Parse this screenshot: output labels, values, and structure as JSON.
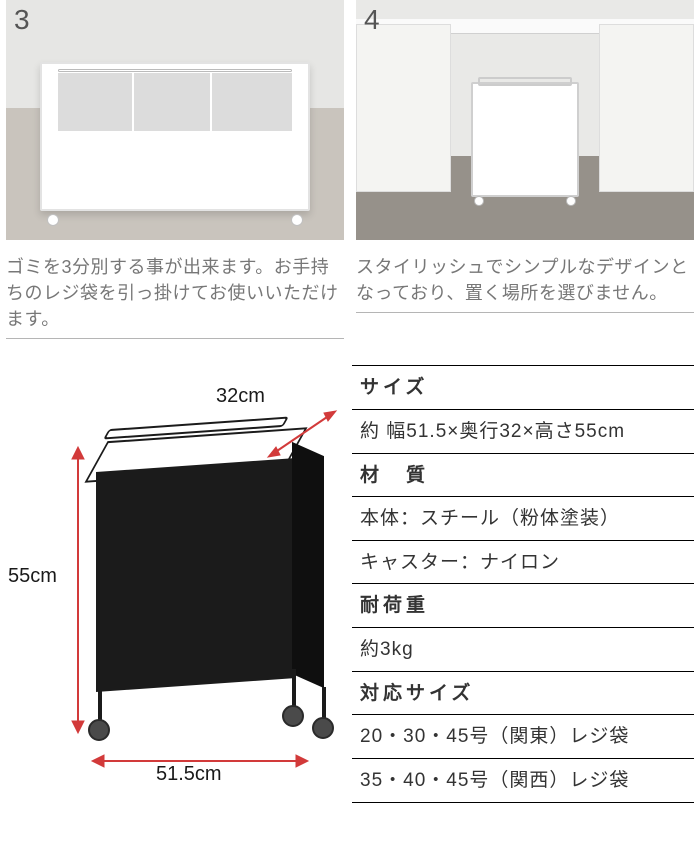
{
  "photos": [
    {
      "number": "3",
      "caption": "ゴミを3分別する事が出来ます。お手持ちのレジ袋を引っ掛けてお使いいただけます。"
    },
    {
      "number": "4",
      "caption": "スタイリッシュでシンプルなデザインとなっており、置く場所を選びません。"
    }
  ],
  "diagram": {
    "depth_label": "32cm",
    "height_label": "55cm",
    "width_label": "51.5cm",
    "arrow_color": "#d23a3a",
    "body_color": "#1b1b1b"
  },
  "spec": {
    "rows": [
      {
        "text": "サイズ",
        "header": true
      },
      {
        "text": "約 幅51.5×奥行32×高さ55cm",
        "header": false
      },
      {
        "text": "材　質",
        "header": true
      },
      {
        "text": "本体：スチール（粉体塗装）",
        "header": false
      },
      {
        "text": "キャスター：ナイロン",
        "header": false
      },
      {
        "text": "耐荷重",
        "header": true
      },
      {
        "text": "約3kg",
        "header": false
      },
      {
        "text": "対応サイズ",
        "header": true
      },
      {
        "text": "20・30・45号（関東）レジ袋",
        "header": false
      },
      {
        "text": "35・40・45号（関西）レジ袋",
        "header": false
      }
    ]
  },
  "colors": {
    "caption_text": "#777777",
    "divider": "#b5b5b5",
    "spec_border": "#000000"
  }
}
